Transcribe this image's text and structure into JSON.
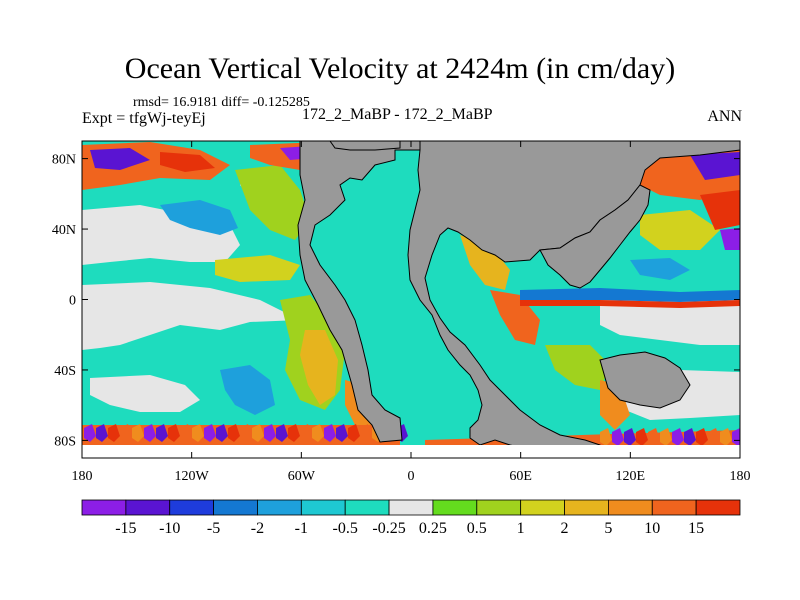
{
  "title": "Ocean Vertical Velocity at 2424m (in cm/day)",
  "stats_line": "rmsd= 16.9181 diff= -0.125285",
  "expt_line": "Expt = tfgWj-teyEj",
  "case_line": "172_2_MaBP - 172_2_MaBP",
  "season": "ANN",
  "map": {
    "lon_range": [
      -180,
      180
    ],
    "lat_range": [
      -90,
      90
    ],
    "land_color": "#999999",
    "x_ticks": [
      {
        "lon": -180,
        "label": "180"
      },
      {
        "lon": -120,
        "label": "120W"
      },
      {
        "lon": -60,
        "label": "60W"
      },
      {
        "lon": 0,
        "label": "0"
      },
      {
        "lon": 60,
        "label": "60E"
      },
      {
        "lon": 120,
        "label": "120E"
      },
      {
        "lon": 180,
        "label": "180"
      }
    ],
    "y_ticks": [
      {
        "lat": 80,
        "label": "80N"
      },
      {
        "lat": 40,
        "label": "40N"
      },
      {
        "lat": 0,
        "label": "0"
      },
      {
        "lat": -40,
        "label": "40S"
      },
      {
        "lat": -80,
        "label": "80S"
      }
    ]
  },
  "colorbar": {
    "colors": [
      "#8c1ee6",
      "#5a14d2",
      "#1e3cdc",
      "#1478d2",
      "#1ea0dc",
      "#1ec8d2",
      "#1edcbe",
      "#e6e6e6",
      "#64dc1e",
      "#a0d21e",
      "#d2d21e",
      "#e6b41e",
      "#f08c1e",
      "#f0641e",
      "#e6320a"
    ],
    "labels": [
      "-15",
      "-10",
      "-5",
      "-2",
      "-1",
      "-0.5",
      "-0.25",
      "0.25",
      "0.5",
      "1",
      "2",
      "5",
      "10",
      "15"
    ]
  }
}
